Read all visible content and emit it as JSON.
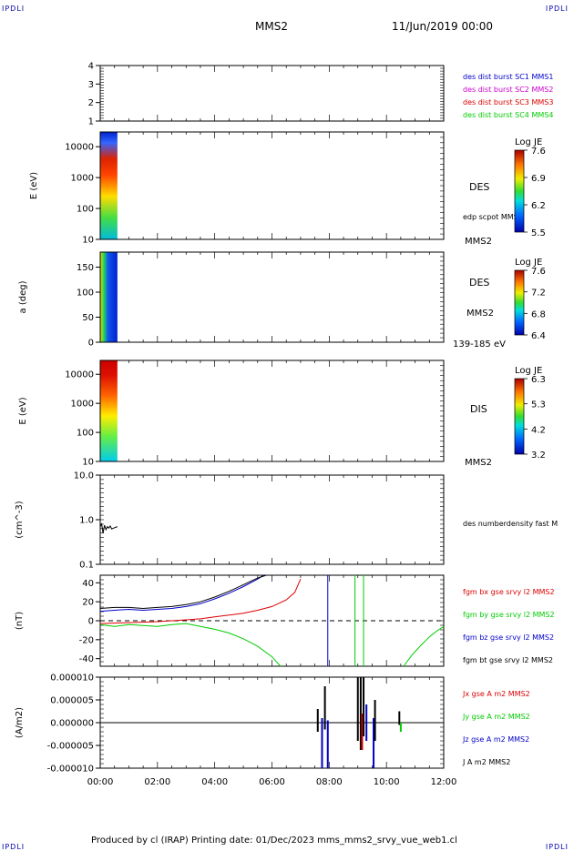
{
  "header": {
    "corner_label": "IPDLI",
    "mission": "MMS2",
    "datetime": "11/Jun/2019 00:00"
  },
  "footer": {
    "text": "Produced by cl (IRAP)   Printing date: 01/Dec/2023   mms_mms2_srvy_vue_web1.cl"
  },
  "colors": {
    "blue": "#0000cc",
    "magenta": "#cc00cc",
    "red": "#dd0000",
    "green": "#00cc00",
    "black": "#000000"
  },
  "chart_data": [
    {
      "type": "line",
      "panel": "burst",
      "ylim": [
        1,
        4
      ],
      "yticks": [
        "4",
        "3",
        "2",
        "1"
      ],
      "legend": [
        {
          "label": "des dist burst SC1 MMS1",
          "color": "#0000cc"
        },
        {
          "label": "des dist burst SC2 MMS2",
          "color": "#cc00cc"
        },
        {
          "label": "des dist burst SC3 MMS3",
          "color": "#dd0000"
        },
        {
          "label": "des dist burst SC4 MMS4",
          "color": "#00cc00"
        }
      ],
      "series": []
    },
    {
      "type": "heatmap",
      "panel": "des-energy",
      "ylabel": "E (eV)",
      "yticks": [
        "10000",
        "1000",
        "100",
        "10"
      ],
      "ylim": [
        10,
        30000
      ],
      "data_extent_hours": [
        0.0,
        0.6
      ],
      "right_label": "DES",
      "note": "edp scpot MMS2",
      "bottom_label": "MMS2",
      "colorbar": {
        "title": "Log JE",
        "ticks": [
          "7.6",
          "6.9",
          "6.2",
          "5.5"
        ]
      }
    },
    {
      "type": "heatmap",
      "panel": "des-pitch",
      "ylabel": "a (deg)",
      "yticks": [
        "150",
        "100",
        "50",
        "0"
      ],
      "ylim": [
        0,
        180
      ],
      "data_extent_hours": [
        0.0,
        0.6
      ],
      "right_label": "DES",
      "note": "MMS2",
      "bottom_label": "139-185 eV",
      "colorbar": {
        "title": "Log JE",
        "ticks": [
          "7.6",
          "7.2",
          "6.8",
          "6.4"
        ]
      }
    },
    {
      "type": "heatmap",
      "panel": "dis-energy",
      "ylabel": "E (eV)",
      "yticks": [
        "10000",
        "1000",
        "100",
        "10"
      ],
      "ylim": [
        10,
        30000
      ],
      "data_extent_hours": [
        0.0,
        0.6
      ],
      "right_label": "DIS",
      "bottom_label": "MMS2",
      "colorbar": {
        "title": "Log JE",
        "ticks": [
          "6.3",
          "5.3",
          "4.2",
          "3.2"
        ]
      }
    },
    {
      "type": "line",
      "panel": "density",
      "ylabel": "(cm^-3)",
      "yticks": [
        "10.0",
        "1.0",
        "0.1"
      ],
      "ylim": [
        0.1,
        10
      ],
      "log": true,
      "legend": [
        {
          "label": "des numberdensity fast M",
          "color": "#000000"
        }
      ],
      "series": [
        {
          "color": "#000000",
          "x": [
            0.0,
            0.05,
            0.1,
            0.15,
            0.2,
            0.25,
            0.3,
            0.35,
            0.4,
            0.5,
            0.6
          ],
          "y": [
            0.7,
            0.8,
            0.5,
            0.75,
            0.6,
            0.7,
            0.65,
            0.72,
            0.62,
            0.66,
            0.7
          ]
        }
      ]
    },
    {
      "type": "line",
      "panel": "fgm",
      "ylabel": "(nT)",
      "yticks": [
        "40",
        "20",
        "0",
        "-20",
        "-40"
      ],
      "ylim": [
        -48,
        48
      ],
      "legend": [
        {
          "label": "fgm bx gse srvy l2 MMS2",
          "color": "#dd0000"
        },
        {
          "label": "fgm by gse srvy l2 MMS2",
          "color": "#00cc00"
        },
        {
          "label": "fgm bz gse srvy l2 MMS2",
          "color": "#0000cc"
        },
        {
          "label": "fgm bt gse srvy l2 MMS2",
          "color": "#000000"
        }
      ],
      "series": [
        {
          "name": "fgm bx gse srvy l2 MMS2",
          "color": "#dd0000",
          "x": [
            0,
            1,
            2,
            3,
            3.5,
            4,
            4.5,
            5,
            5.5,
            6,
            6.5,
            6.8,
            7.0
          ],
          "y": [
            -3,
            -2,
            -1,
            1,
            2,
            4,
            6,
            8,
            11,
            15,
            22,
            30,
            44
          ]
        },
        {
          "name": "fgm by gse srvy l2 MMS2",
          "color": "#00cc00",
          "x": [
            0,
            0.5,
            1,
            1.5,
            2,
            2.5,
            3,
            3.5,
            4,
            4.5,
            5,
            5.5,
            6,
            6.3
          ],
          "y": [
            -4,
            -6,
            -4,
            -5,
            -6,
            -4,
            -3,
            -6,
            -9,
            -13,
            -19,
            -27,
            -38,
            -48
          ]
        },
        {
          "name": "fgm bz gse srvy l2 MMS2",
          "color": "#0000cc",
          "x": [
            0,
            0.5,
            1,
            1.5,
            2,
            2.5,
            3,
            3.5,
            4,
            4.5,
            5,
            5.5,
            5.7
          ],
          "y": [
            10,
            11,
            12,
            11,
            12,
            13,
            15,
            18,
            23,
            29,
            36,
            44,
            48
          ]
        },
        {
          "name": "fgm bt gse srvy l2 MMS2",
          "color": "#000000",
          "x": [
            0,
            0.5,
            1,
            1.5,
            2,
            2.5,
            3,
            3.5,
            4,
            4.5,
            5,
            5.5,
            5.8
          ],
          "y": [
            13,
            14,
            14,
            13,
            14,
            15,
            17,
            20,
            25,
            31,
            38,
            45,
            48
          ]
        },
        {
          "name": "by-late",
          "color": "#00cc00",
          "x": [
            10.6,
            10.9,
            11.2,
            11.5,
            11.8,
            12.0
          ],
          "y": [
            -48,
            -36,
            -26,
            -17,
            -10,
            -6
          ]
        }
      ],
      "vlines": [
        {
          "x": 7.95,
          "color": "#0000cc"
        },
        {
          "x": 8.9,
          "color": "#00cc00"
        },
        {
          "x": 9.2,
          "color": "#00cc00"
        }
      ]
    },
    {
      "type": "line",
      "panel": "current",
      "ylabel": "(A/m2)",
      "yticks": [
        "0.000010",
        "0.000005",
        "0.000000",
        "-0.000005",
        "-0.000010"
      ],
      "ylim": [
        -1e-05,
        1e-05
      ],
      "xlim": [
        0,
        12
      ],
      "xticks": [
        "00:00",
        "02:00",
        "04:00",
        "06:00",
        "08:00",
        "10:00",
        "12:00"
      ],
      "legend": [
        {
          "label": "Jx gse A m2 MMS2",
          "color": "#dd0000"
        },
        {
          "label": "Jy gse A m2 MMS2",
          "color": "#00cc00"
        },
        {
          "label": "Jz gse A m2 MMS2",
          "color": "#0000cc"
        },
        {
          "label": "J A m2 MMS2",
          "color": "#000000"
        }
      ],
      "spikes": [
        {
          "x": 7.6,
          "ymin": -2e-06,
          "ymax": 3e-06,
          "color": "#000000"
        },
        {
          "x": 7.75,
          "ymin": -1e-05,
          "ymax": 1e-06,
          "color": "#0000cc"
        },
        {
          "x": 7.85,
          "ymin": -1.5e-06,
          "ymax": 8e-06,
          "color": "#000000"
        },
        {
          "x": 7.95,
          "ymin": -1e-05,
          "ymax": 5e-07,
          "color": "#0000cc"
        },
        {
          "x": 9.0,
          "ymin": -4e-06,
          "ymax": 1e-05,
          "color": "#000000"
        },
        {
          "x": 9.1,
          "ymin": -6e-06,
          "ymax": 1e-05,
          "color": "#000000"
        },
        {
          "x": 9.15,
          "ymin": -6e-06,
          "ymax": 2e-06,
          "color": "#dd0000"
        },
        {
          "x": 9.2,
          "ymin": -3e-06,
          "ymax": 1e-05,
          "color": "#000000"
        },
        {
          "x": 9.3,
          "ymin": -4e-06,
          "ymax": 4e-06,
          "color": "#0000cc"
        },
        {
          "x": 9.55,
          "ymin": -1e-05,
          "ymax": 1e-06,
          "color": "#0000cc"
        },
        {
          "x": 9.6,
          "ymin": -4e-06,
          "ymax": 5e-06,
          "color": "#000000"
        },
        {
          "x": 10.45,
          "ymin": -5e-07,
          "ymax": 2.5e-06,
          "color": "#000000"
        },
        {
          "x": 10.5,
          "ymin": -2e-06,
          "ymax": 0.0,
          "color": "#00cc00"
        }
      ]
    }
  ]
}
